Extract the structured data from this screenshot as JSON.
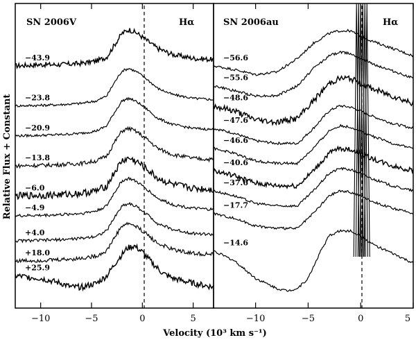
{
  "figure": {
    "xlabel": "Velocity (10³ km s⁻¹)",
    "ylabel": "Relative Flux + Constant"
  },
  "chart_data": [
    {
      "type": "line",
      "title": "SN 2006V",
      "line_label": "Hα",
      "xlim": [
        -12.5,
        7
      ],
      "xticks": [
        -10,
        -5,
        0,
        5
      ],
      "tick_labels": [
        "−10",
        "−5",
        "0",
        "5"
      ],
      "rest_velocity_marker": 0,
      "series": [
        {
          "name": "−43.9",
          "label": "−43.9",
          "offset": 9.0,
          "noise": 0.1,
          "x": [
            -12.5,
            -10,
            -8,
            -6,
            -4.5,
            -3.5,
            -2.8,
            -2,
            -1.3,
            -0.5,
            0.5,
            1.5,
            3,
            5,
            7
          ],
          "y": [
            0,
            0.05,
            0.05,
            0.1,
            0.2,
            0.35,
            0.8,
            1.3,
            1.45,
            1.3,
            1.0,
            0.7,
            0.45,
            0.3,
            0.25
          ]
        },
        {
          "name": "−23.8",
          "label": "−23.8",
          "offset": 7.4,
          "noise": 0.05,
          "x": [
            -12.5,
            -10,
            -8,
            -6,
            -4.5,
            -3.5,
            -2.8,
            -2,
            -1.3,
            -0.5,
            0.5,
            1.5,
            3,
            5,
            7
          ],
          "y": [
            0,
            0.02,
            0.05,
            0.1,
            0.2,
            0.4,
            0.9,
            1.4,
            1.5,
            1.35,
            1.05,
            0.7,
            0.45,
            0.3,
            0.25
          ]
        },
        {
          "name": "−20.9",
          "label": "−20.9",
          "offset": 6.2,
          "noise": 0.05,
          "x": [
            -12.5,
            -10,
            -8,
            -6,
            -4.5,
            -3.5,
            -2.8,
            -2,
            -1.3,
            -0.5,
            0.5,
            1.5,
            3,
            5,
            7
          ],
          "y": [
            0,
            0.02,
            0.05,
            0.1,
            0.2,
            0.4,
            0.9,
            1.4,
            1.5,
            1.35,
            1.05,
            0.7,
            0.45,
            0.3,
            0.25
          ]
        },
        {
          "name": "−13.8",
          "label": "−13.8",
          "offset": 5.0,
          "noise": 0.08,
          "x": [
            -12.5,
            -10,
            -8,
            -6,
            -4.5,
            -3.5,
            -2.8,
            -2,
            -1.3,
            -0.5,
            0.5,
            1.5,
            3,
            5,
            7
          ],
          "y": [
            0,
            0.02,
            0.05,
            0.1,
            0.2,
            0.4,
            0.9,
            1.4,
            1.5,
            1.35,
            1.05,
            0.7,
            0.45,
            0.3,
            0.25
          ]
        },
        {
          "name": "−6.0",
          "label": "−6.0",
          "offset": 3.8,
          "noise": 0.14,
          "x": [
            -12.5,
            -10,
            -8,
            -6,
            -4.5,
            -3.5,
            -2.8,
            -2,
            -1.3,
            -0.5,
            0.5,
            1.5,
            3,
            5,
            7
          ],
          "y": [
            0,
            0.02,
            0.05,
            0.1,
            0.2,
            0.4,
            0.9,
            1.4,
            1.5,
            1.35,
            1.05,
            0.7,
            0.45,
            0.3,
            0.25
          ]
        },
        {
          "name": "−4.9",
          "label": "−4.9",
          "offset": 3.0,
          "noise": 0.06,
          "x": [
            -12.5,
            -10,
            -8,
            -6,
            -4.5,
            -3.5,
            -2.8,
            -2,
            -1.3,
            -0.5,
            0.5,
            1.5,
            3,
            5,
            7
          ],
          "y": [
            0,
            0.02,
            0.05,
            0.1,
            0.2,
            0.4,
            0.9,
            1.4,
            1.5,
            1.35,
            1.05,
            0.7,
            0.45,
            0.3,
            0.25
          ]
        },
        {
          "name": "+4.0",
          "label": "+4.0",
          "offset": 2.0,
          "noise": 0.06,
          "x": [
            -12.5,
            -10,
            -8,
            -6,
            -4.5,
            -3.5,
            -2.8,
            -2,
            -1.3,
            -0.5,
            0.5,
            1.5,
            3,
            5,
            7
          ],
          "y": [
            0,
            0.02,
            0.05,
            0.1,
            0.2,
            0.4,
            0.9,
            1.4,
            1.5,
            1.35,
            1.05,
            0.7,
            0.45,
            0.3,
            0.25
          ]
        },
        {
          "name": "+18.0",
          "label": "+18.0",
          "offset": 1.2,
          "noise": 0.08,
          "x": [
            -12.5,
            -10,
            -8,
            -6,
            -4.5,
            -3.5,
            -2.8,
            -2,
            -1.3,
            -0.5,
            0.5,
            1.5,
            3,
            5,
            7
          ],
          "y": [
            0,
            0.02,
            0.05,
            0.1,
            0.2,
            0.4,
            0.9,
            1.4,
            1.5,
            1.35,
            1.05,
            0.7,
            0.45,
            0.3,
            0.25
          ]
        },
        {
          "name": "+25.9",
          "label": "+25.9",
          "offset": 0.0,
          "noise": 0.12,
          "x": [
            -12.5,
            -10,
            -8,
            -7,
            -6,
            -4.5,
            -3.5,
            -2.5,
            -1.5,
            -0.8,
            0,
            1,
            2,
            3,
            5,
            7
          ],
          "y": [
            0.6,
            0.5,
            0.3,
            0.15,
            0.15,
            0.3,
            0.6,
            1.2,
            1.7,
            1.8,
            1.55,
            1.1,
            0.7,
            0.5,
            0.3,
            0.15
          ]
        }
      ]
    },
    {
      "type": "line",
      "title": "SN 2006au",
      "line_label": "Hα",
      "xlim": [
        -14,
        5
      ],
      "xticks": [
        -10,
        -5,
        0,
        5
      ],
      "tick_labels": [
        "−10",
        "−5",
        "0",
        "5"
      ],
      "rest_velocity_marker": 0,
      "series": [
        {
          "name": "−56.6",
          "label": "−56.6",
          "offset": 8.5,
          "noise": 0.05,
          "x": [
            -14,
            -12,
            -10,
            -8,
            -6,
            -4.5,
            -3,
            -2,
            -1,
            0,
            1,
            2,
            3,
            4,
            5
          ],
          "y": [
            0.5,
            0.35,
            0.15,
            0.25,
            0.8,
            1.4,
            1.8,
            1.9,
            1.9,
            1.7,
            1.5,
            1.35,
            1.2,
            1.05,
            0.9
          ]
        },
        {
          "name": "−55.6",
          "label": "−55.6",
          "offset": 7.7,
          "noise": 0.05,
          "x": [
            -14,
            -12,
            -10,
            -8,
            -6,
            -4.5,
            -3,
            -2,
            -1,
            0,
            1,
            2,
            3,
            4,
            5
          ],
          "y": [
            0.5,
            0.3,
            0.1,
            0.1,
            0.5,
            1.2,
            1.7,
            1.85,
            1.8,
            1.6,
            1.4,
            1.25,
            1.1,
            0.95,
            0.8
          ]
        },
        {
          "name": "−48.6",
          "label": "−48.6",
          "offset": 6.7,
          "noise": 0.12,
          "x": [
            -14,
            -12,
            -10,
            -8,
            -6,
            -4.5,
            -3,
            -2,
            -1,
            0,
            1,
            2,
            3,
            4,
            5
          ],
          "y": [
            0.7,
            0.5,
            0.15,
            0.05,
            0.2,
            0.9,
            1.6,
            1.8,
            1.8,
            1.6,
            1.4,
            1.25,
            1.1,
            0.95,
            0.8
          ]
        },
        {
          "name": "−47.6",
          "label": "−47.6",
          "offset": 5.7,
          "noise": 0.05,
          "x": [
            -14,
            -12,
            -10,
            -8,
            -6,
            -4.5,
            -3,
            -2,
            -1,
            0,
            1,
            2,
            3,
            4,
            5
          ],
          "y": [
            0.8,
            0.6,
            0.3,
            0.2,
            0.2,
            0.8,
            1.5,
            1.7,
            1.65,
            1.5,
            1.3,
            1.15,
            1.0,
            0.9,
            0.8
          ]
        },
        {
          "name": "−46.6",
          "label": "−46.6",
          "offset": 4.9,
          "noise": 0.05,
          "x": [
            -14,
            -12,
            -10,
            -8,
            -6,
            -4.5,
            -3,
            -2,
            -1,
            0,
            1,
            2,
            3,
            4,
            5
          ],
          "y": [
            0.8,
            0.6,
            0.3,
            0.2,
            0.2,
            0.8,
            1.5,
            1.7,
            1.65,
            1.5,
            1.3,
            1.15,
            1.0,
            0.9,
            0.8
          ]
        },
        {
          "name": "−40.6",
          "label": "−40.6",
          "offset": 4.0,
          "noise": 0.1,
          "x": [
            -14,
            -12,
            -10,
            -8,
            -6,
            -4.5,
            -3,
            -2,
            -1,
            0,
            1,
            2,
            3,
            4,
            5
          ],
          "y": [
            0.8,
            0.6,
            0.3,
            0.2,
            0.2,
            0.8,
            1.5,
            1.7,
            1.65,
            1.5,
            1.3,
            1.15,
            1.0,
            0.9,
            0.8
          ]
        },
        {
          "name": "−37.6",
          "label": "−37.6",
          "offset": 3.2,
          "noise": 0.05,
          "x": [
            -14,
            -12,
            -10,
            -8,
            -6,
            -4.5,
            -3,
            -2,
            -1,
            0,
            1,
            2,
            3,
            4,
            5
          ],
          "y": [
            0.8,
            0.6,
            0.3,
            0.2,
            0.2,
            0.8,
            1.5,
            1.7,
            1.65,
            1.5,
            1.3,
            1.15,
            1.0,
            0.9,
            0.8
          ]
        },
        {
          "name": "−17.7",
          "label": "−17.7",
          "offset": 2.3,
          "noise": 0.05,
          "x": [
            -14,
            -12,
            -10,
            -8,
            -6,
            -4.5,
            -3,
            -2,
            -1,
            0,
            1,
            2,
            3,
            4,
            5
          ],
          "y": [
            0.8,
            0.6,
            0.3,
            0.2,
            0.2,
            0.8,
            1.5,
            1.7,
            1.65,
            1.5,
            1.3,
            1.15,
            1.0,
            0.9,
            0.8
          ]
        },
        {
          "name": "−14.6",
          "label": "−14.6",
          "offset": 0.0,
          "noise": 0.05,
          "x": [
            -14,
            -12,
            -10,
            -8,
            -7,
            -6,
            -5,
            -3.8,
            -3,
            -2,
            -1,
            0,
            1,
            2,
            3,
            4,
            5
          ],
          "y": [
            1.6,
            1.2,
            0.5,
            0.1,
            0.0,
            0.1,
            0.5,
            1.6,
            2.2,
            2.4,
            2.4,
            2.2,
            1.9,
            1.7,
            1.5,
            1.3,
            1.1
          ]
        }
      ]
    }
  ]
}
